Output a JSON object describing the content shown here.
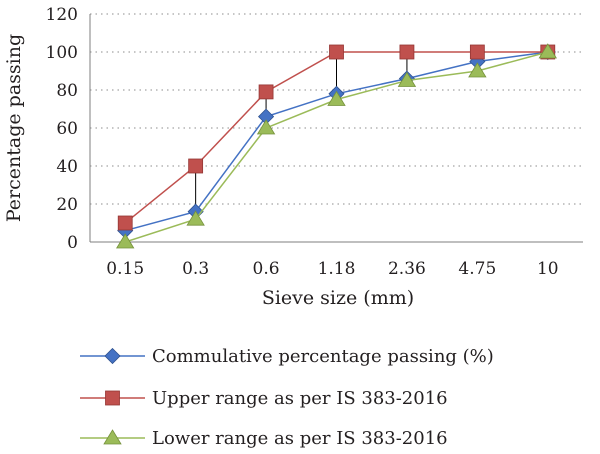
{
  "chart_data": {
    "type": "line",
    "categories": [
      "0.15",
      "0.3",
      "0.6",
      "1.18",
      "2.36",
      "4.75",
      "10"
    ],
    "xlabel": "Sieve size (mm)",
    "ylabel": "Percentage passing",
    "ylim": [
      0,
      120
    ],
    "yticks": [
      "0",
      "20",
      "40",
      "60",
      "80",
      "100",
      "120"
    ],
    "grid": "horizontal dotted",
    "legend_position": "bottom",
    "series": [
      {
        "name": "Commulative percentage passing (%)",
        "values": [
          6,
          16,
          66,
          78,
          86,
          95,
          100
        ],
        "color": "#4472c4",
        "marker": "diamond"
      },
      {
        "name": "Upper range as per IS 383-2016",
        "values": [
          10,
          40,
          79,
          100,
          100,
          100,
          100
        ],
        "color": "#c0504d",
        "marker": "square"
      },
      {
        "name": "Lower range as per IS 383-2016",
        "values": [
          0,
          12,
          60,
          75,
          85,
          90,
          100
        ],
        "color": "#9bbb59",
        "marker": "triangle"
      }
    ]
  }
}
